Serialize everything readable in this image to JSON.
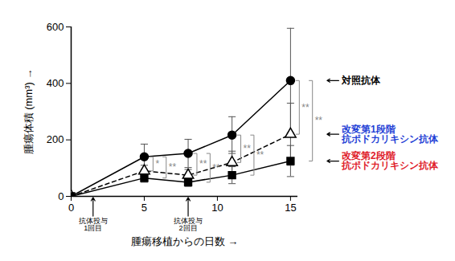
{
  "chart_data": {
    "type": "line",
    "x_label": "腫瘍移植からの日数",
    "y_label": "腫瘍体積 (mm³)",
    "x": [
      0,
      5,
      8,
      11,
      15
    ],
    "xlim": [
      0,
      15.5
    ],
    "xticks": [
      0,
      5,
      10,
      15
    ],
    "ylim": [
      0,
      600
    ],
    "yticks": [
      0,
      200,
      400,
      600
    ],
    "grid": false,
    "legend": "right",
    "series": [
      {
        "name": "対照抗体",
        "color": "#000000",
        "label_color": "#000000",
        "marker": "circle",
        "line_style": "solid",
        "values": [
          0,
          140,
          152,
          217,
          410
        ],
        "errors": [
          0,
          45,
          50,
          65,
          185
        ]
      },
      {
        "name": "改変第1段階\n抗ポドカリキシン抗体",
        "color": "#000000",
        "label_color": "#1f3fd6",
        "marker": "open_triangle",
        "line_style": "dashed",
        "values": [
          0,
          90,
          75,
          120,
          220
        ],
        "errors": [
          0,
          20,
          20,
          40,
          110
        ]
      },
      {
        "name": "改変第2段階\n抗ポドカリキシン抗体",
        "color": "#000000",
        "label_color": "#e0202a",
        "marker": "square",
        "line_style": "solid",
        "values": [
          0,
          65,
          50,
          75,
          125
        ],
        "errors": [
          0,
          15,
          15,
          30,
          55
        ]
      }
    ],
    "significance": [
      {
        "x": 5,
        "between": [
          0,
          1
        ],
        "label": "*"
      },
      {
        "x": 5,
        "between": [
          0,
          2
        ],
        "label": "**"
      },
      {
        "x": 8,
        "between": [
          0,
          1
        ],
        "label": "**"
      },
      {
        "x": 8,
        "between": [
          0,
          2
        ],
        "label": "**"
      },
      {
        "x": 11,
        "between": [
          0,
          1
        ],
        "label": "**"
      },
      {
        "x": 11,
        "between": [
          0,
          2
        ],
        "label": "**"
      },
      {
        "x": 15,
        "between": [
          0,
          1
        ],
        "label": "**"
      },
      {
        "x": 15,
        "between": [
          0,
          2
        ],
        "label": "**"
      }
    ],
    "dosing": [
      {
        "x": 1.5,
        "label": "抗体投与\n1回目"
      },
      {
        "x": 8,
        "label": "抗体投与\n2回目"
      }
    ]
  }
}
